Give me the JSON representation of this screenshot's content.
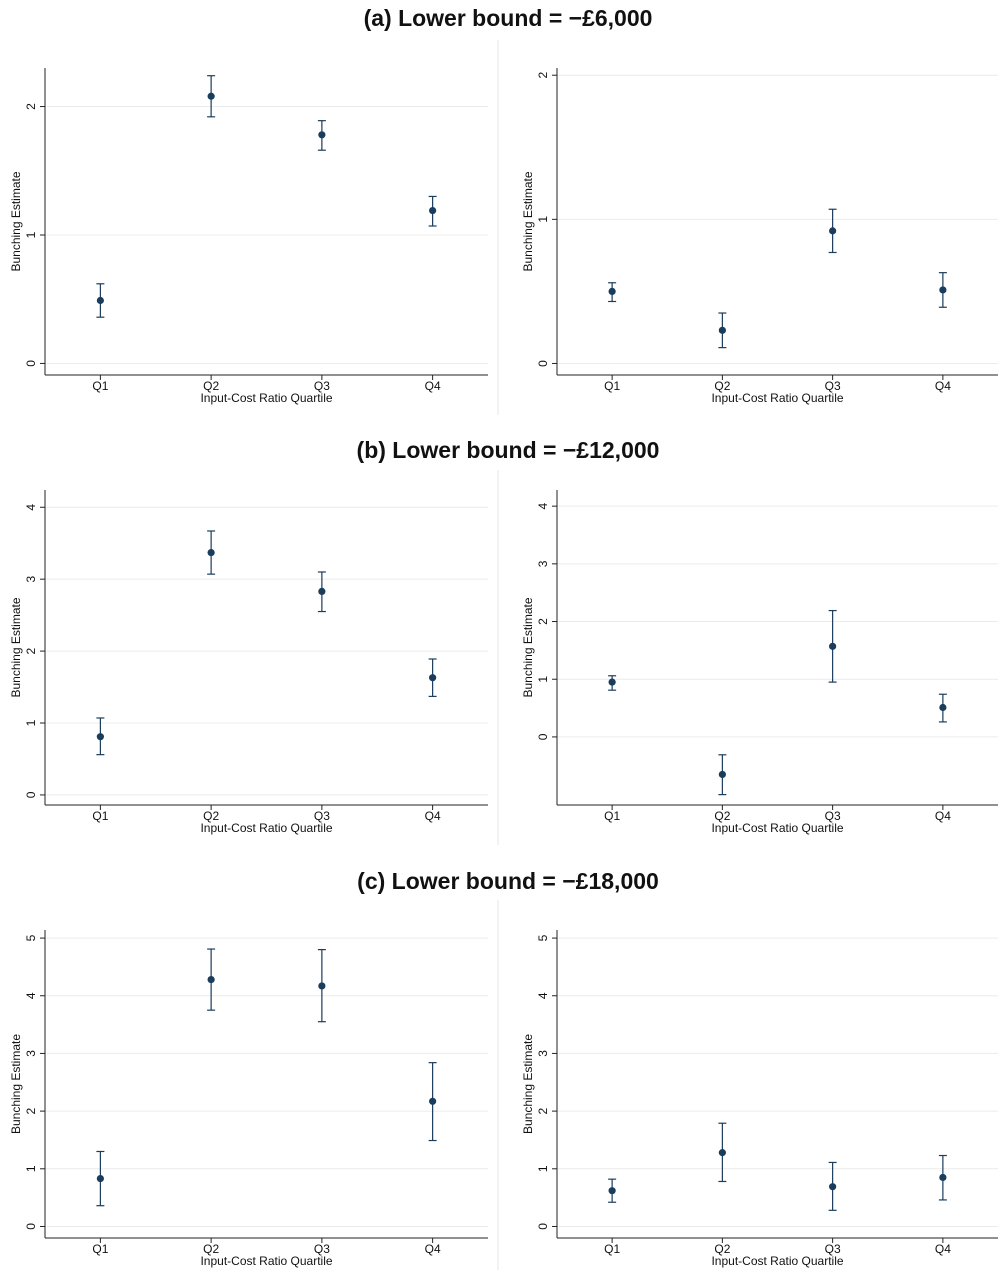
{
  "section_titles": [
    "(a) Lower bound = −£6,000",
    "(b) Lower bound = −£12,000",
    "(c) Lower bound = −£18,000"
  ],
  "chart_data": [
    {
      "type": "errorbar",
      "categories": [
        "Q1",
        "Q2",
        "Q3",
        "Q4"
      ],
      "values": [
        0.49,
        2.08,
        1.78,
        1.19
      ],
      "ci_low": [
        0.36,
        1.92,
        1.66,
        1.07
      ],
      "ci_high": [
        0.62,
        2.24,
        1.89,
        1.3
      ],
      "ylim": [
        -0.09,
        2.3
      ],
      "yticks": [
        0,
        1,
        2
      ],
      "x_label": "Input-Cost Ratio Quartile",
      "y_label": "Bunching Estimate",
      "color": "#1a3d5c",
      "grid": true
    },
    {
      "type": "errorbar",
      "categories": [
        "Q1",
        "Q2",
        "Q3",
        "Q4"
      ],
      "values": [
        0.5,
        0.23,
        0.92,
        0.51
      ],
      "ci_low": [
        0.43,
        0.11,
        0.77,
        0.39
      ],
      "ci_high": [
        0.56,
        0.35,
        1.07,
        0.63
      ],
      "ylim": [
        -0.08,
        2.05
      ],
      "yticks": [
        0,
        1,
        2
      ],
      "x_label": "Input-Cost Ratio Quartile",
      "y_label": "Bunching Estimate",
      "color": "#1a3d5c",
      "grid": true
    },
    {
      "type": "errorbar",
      "categories": [
        "Q1",
        "Q2",
        "Q3",
        "Q4"
      ],
      "values": [
        0.81,
        3.37,
        2.83,
        1.63
      ],
      "ci_low": [
        0.56,
        3.07,
        2.55,
        1.37
      ],
      "ci_high": [
        1.07,
        3.67,
        3.1,
        1.89
      ],
      "ylim": [
        -0.14,
        4.24
      ],
      "yticks": [
        0,
        1,
        2,
        3,
        4
      ],
      "x_label": "Input-Cost Ratio Quartile",
      "y_label": "Bunching Estimate",
      "color": "#1a3d5c",
      "grid": true
    },
    {
      "type": "errorbar",
      "categories": [
        "Q1",
        "Q2",
        "Q3",
        "Q4"
      ],
      "values": [
        0.95,
        -0.65,
        1.57,
        0.51
      ],
      "ci_low": [
        0.81,
        -1.0,
        0.95,
        0.26
      ],
      "ci_high": [
        1.06,
        -0.31,
        2.19,
        0.74
      ],
      "ylim": [
        -1.18,
        4.28
      ],
      "yticks": [
        0,
        1,
        2,
        3,
        4
      ],
      "x_label": "Input-Cost Ratio Quartile",
      "y_label": "Bunching Estimate",
      "color": "#1a3d5c",
      "grid": true
    },
    {
      "type": "errorbar",
      "categories": [
        "Q1",
        "Q2",
        "Q3",
        "Q4"
      ],
      "values": [
        0.83,
        4.28,
        4.17,
        2.17
      ],
      "ci_low": [
        0.36,
        3.75,
        3.55,
        1.49
      ],
      "ci_high": [
        1.3,
        4.81,
        4.8,
        2.84
      ],
      "ylim": [
        -0.2,
        5.14
      ],
      "yticks": [
        0,
        1,
        2,
        3,
        4,
        5
      ],
      "x_label": "Input-Cost Ratio Quartile",
      "y_label": "Bunching Estimate",
      "color": "#1a3d5c",
      "grid": true
    },
    {
      "type": "errorbar",
      "categories": [
        "Q1",
        "Q2",
        "Q3",
        "Q4"
      ],
      "values": [
        0.62,
        1.28,
        0.69,
        0.85
      ],
      "ci_low": [
        0.42,
        0.78,
        0.28,
        0.46
      ],
      "ci_high": [
        0.82,
        1.79,
        1.11,
        1.23
      ],
      "ylim": [
        -0.2,
        5.14
      ],
      "yticks": [
        0,
        1,
        2,
        3,
        4,
        5
      ],
      "x_label": "Input-Cost Ratio Quartile",
      "y_label": "Bunching Estimate",
      "color": "#1a3d5c",
      "grid": true
    }
  ]
}
